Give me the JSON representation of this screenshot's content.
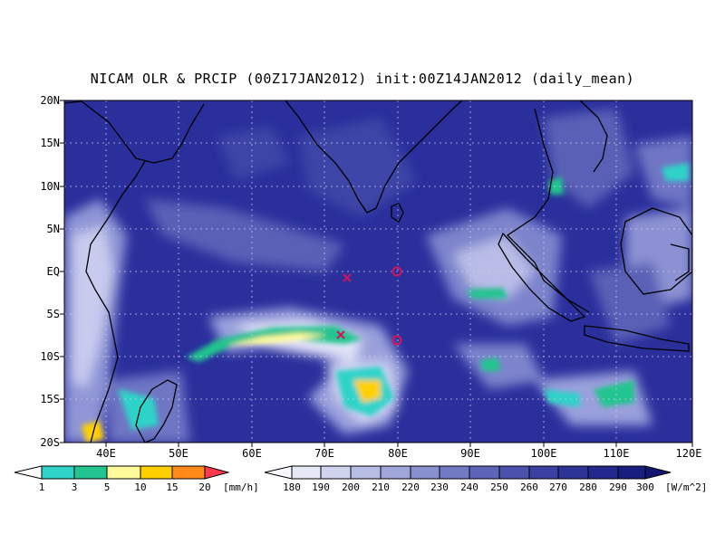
{
  "title": "NICAM OLR & PRCIP (00Z17JAN2012) init:00Z14JAN2012 (daily_mean)",
  "map": {
    "lat_labels": [
      "20N",
      "15N",
      "10N",
      "5N",
      "EQ",
      "5S",
      "10S",
      "15S",
      "20S"
    ],
    "lon_labels": [
      "40E",
      "50E",
      "60E",
      "70E",
      "80E",
      "90E",
      "100E",
      "110E",
      "120E"
    ],
    "lon_range": [
      34,
      120
    ],
    "lat_range": [
      -20,
      20
    ],
    "ocean_color": "#2a2f9c",
    "markers": [
      {
        "type": "x",
        "lon": 73,
        "lat": -0.8,
        "color": "#d4145a"
      },
      {
        "type": "circle",
        "lon": 80,
        "lat": 0,
        "color": "#d4145a"
      },
      {
        "type": "x",
        "lon": 72.5,
        "lat": -7.5,
        "color": "#d4145a"
      },
      {
        "type": "circle",
        "lon": 80,
        "lat": -8.2,
        "color": "#d4145a"
      }
    ]
  },
  "precip_colorbar": {
    "labels": [
      "1",
      "3",
      "5",
      "10",
      "15",
      "20"
    ],
    "unit": "[mm/h]",
    "colors": [
      "#ffffff",
      "#2fd3c8",
      "#22c48f",
      "#fffb9a",
      "#ffd000",
      "#ff8a1a",
      "#ff3a50"
    ]
  },
  "olr_colorbar": {
    "labels": [
      "180",
      "190",
      "200",
      "210",
      "220",
      "230",
      "240",
      "250",
      "260",
      "270",
      "280",
      "290",
      "300"
    ],
    "unit": "[W/m^2]",
    "colors": [
      "#f8f8ff",
      "#e6e8f6",
      "#d0d4ee",
      "#b8bde4",
      "#a0a6da",
      "#8990cf",
      "#737ac4",
      "#5e65b8",
      "#4b52ad",
      "#3a41a2",
      "#2d3498",
      "#22288d",
      "#181d80",
      "#121672"
    ]
  }
}
